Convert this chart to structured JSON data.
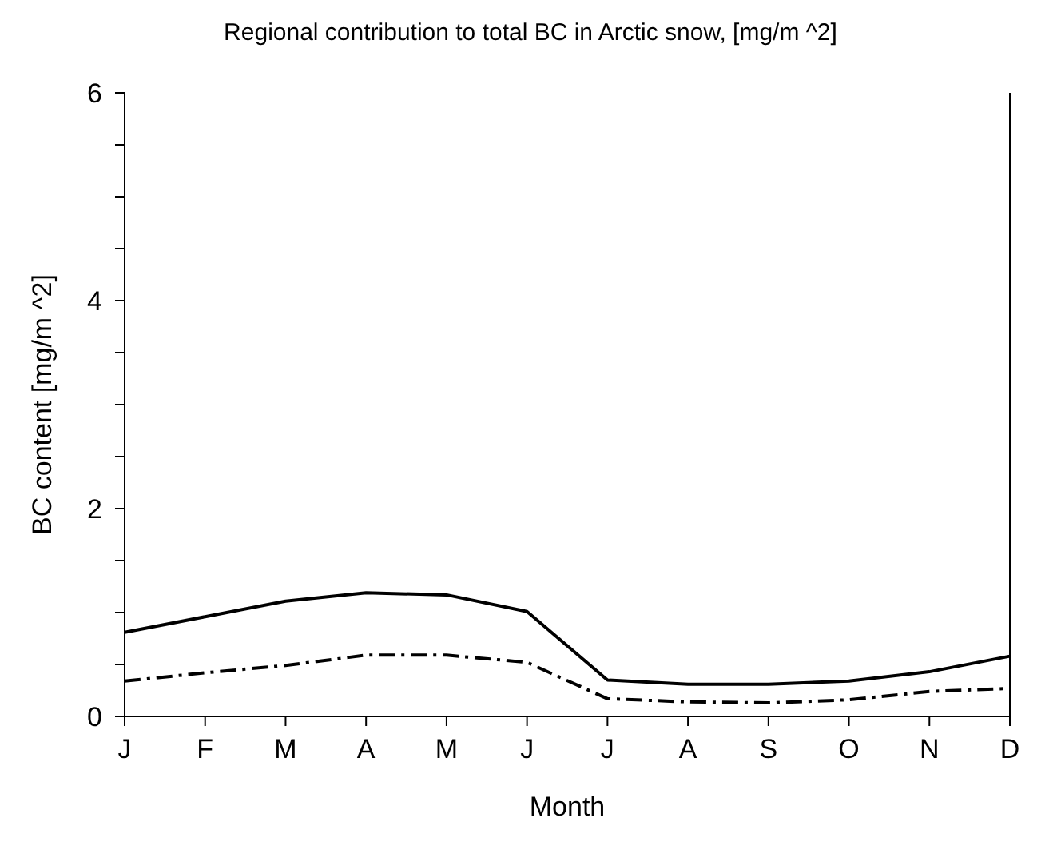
{
  "chart_data": {
    "type": "line",
    "title": "Regional contribution to total BC in Arctic snow, [mg/m ^2]",
    "xlabel": "Month",
    "ylabel": "BC content [mg/m ^2]",
    "categories": [
      "J",
      "F",
      "M",
      "A",
      "M",
      "J",
      "J",
      "A",
      "S",
      "O",
      "N",
      "D"
    ],
    "series": [
      {
        "color": "#000000",
        "line_style": "solid",
        "values": [
          0.81,
          0.96,
          1.11,
          1.19,
          1.17,
          1.01,
          0.35,
          0.31,
          0.31,
          0.34,
          0.43,
          0.58
        ]
      },
      {
        "color": "#000000",
        "line_style": "dashed",
        "values": [
          0.34,
          0.42,
          0.49,
          0.59,
          0.59,
          0.52,
          0.17,
          0.14,
          0.13,
          0.16,
          0.24,
          0.27
        ]
      }
    ],
    "ylim": [
      0,
      6
    ],
    "yticks": [
      0,
      {
        "value": 0.5,
        "label": null
      },
      {
        "value": 1,
        "label": null
      },
      {
        "value": 1.5,
        "label": null
      },
      2,
      {
        "value": 2.5,
        "label": null
      },
      {
        "value": 3,
        "label": null
      },
      {
        "value": 3.5,
        "label": null
      },
      4,
      {
        "value": 4.5,
        "label": null
      },
      {
        "value": 5,
        "label": null
      },
      {
        "value": 5.5,
        "label": null
      },
      6
    ],
    "grid": false,
    "legend": false,
    "marker": "none"
  }
}
